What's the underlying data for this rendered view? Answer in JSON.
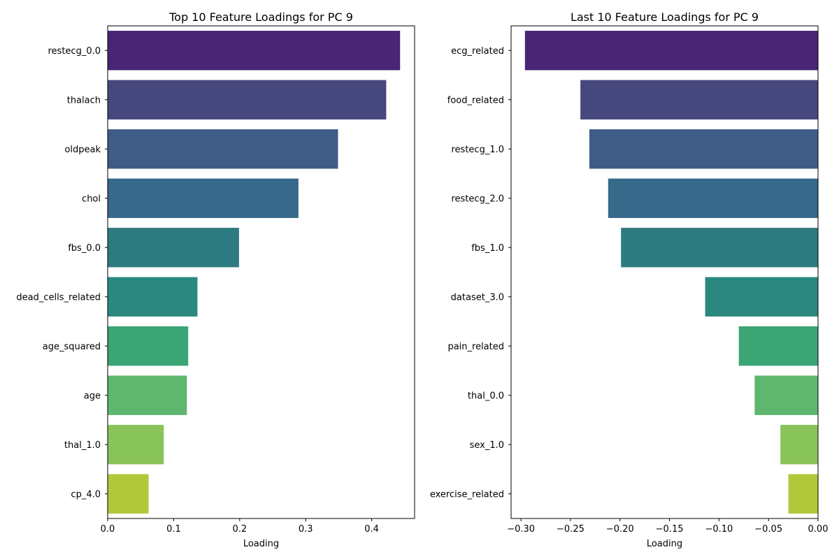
{
  "chart_data": [
    {
      "type": "bar",
      "orientation": "horizontal",
      "title": "Top 10 Feature Loadings for PC 9",
      "xlabel": "Loading",
      "ylabel": "",
      "xlim": [
        0,
        0.465
      ],
      "xticks": [
        0.0,
        0.1,
        0.2,
        0.3,
        0.4
      ],
      "xtick_labels": [
        "0.0",
        "0.1",
        "0.2",
        "0.3",
        "0.4"
      ],
      "grid": false,
      "categories": [
        "restecg_0.0",
        "thalach",
        "oldpeak",
        "chol",
        "fbs_0.0",
        "dead_cells_related",
        "age_squared",
        "age",
        "thal_1.0",
        "cp_4.0"
      ],
      "values": [
        0.443,
        0.422,
        0.349,
        0.289,
        0.199,
        0.136,
        0.122,
        0.12,
        0.085,
        0.062
      ],
      "colors": [
        "#482575",
        "#46477c",
        "#3f5c86",
        "#36698a",
        "#2e7a81",
        "#2a887f",
        "#3ba575",
        "#5fb66e",
        "#89c45a",
        "#b1c83a"
      ]
    },
    {
      "type": "bar",
      "orientation": "horizontal",
      "title": "Last 10 Feature Loadings for PC 9",
      "xlabel": "Loading",
      "ylabel": "",
      "xlim": [
        -0.31,
        0.0
      ],
      "xticks": [
        -0.3,
        -0.25,
        -0.2,
        -0.15,
        -0.1,
        -0.05,
        0.0
      ],
      "xtick_labels": [
        "−0.30",
        "−0.25",
        "−0.20",
        "−0.15",
        "−0.10",
        "−0.05",
        "0.00"
      ],
      "grid": false,
      "categories": [
        "ecg_related",
        "food_related",
        "restecg_1.0",
        "restecg_2.0",
        "fbs_1.0",
        "dataset_3.0",
        "pain_related",
        "thal_0.0",
        "sex_1.0",
        "exercise_related"
      ],
      "values": [
        -0.296,
        -0.24,
        -0.231,
        -0.212,
        -0.199,
        -0.114,
        -0.08,
        -0.064,
        -0.038,
        -0.03
      ],
      "colors": [
        "#482575",
        "#46477c",
        "#3f5c86",
        "#36698a",
        "#2e7a81",
        "#2a887f",
        "#3ba575",
        "#5fb66e",
        "#89c45a",
        "#b1c83a"
      ]
    }
  ]
}
